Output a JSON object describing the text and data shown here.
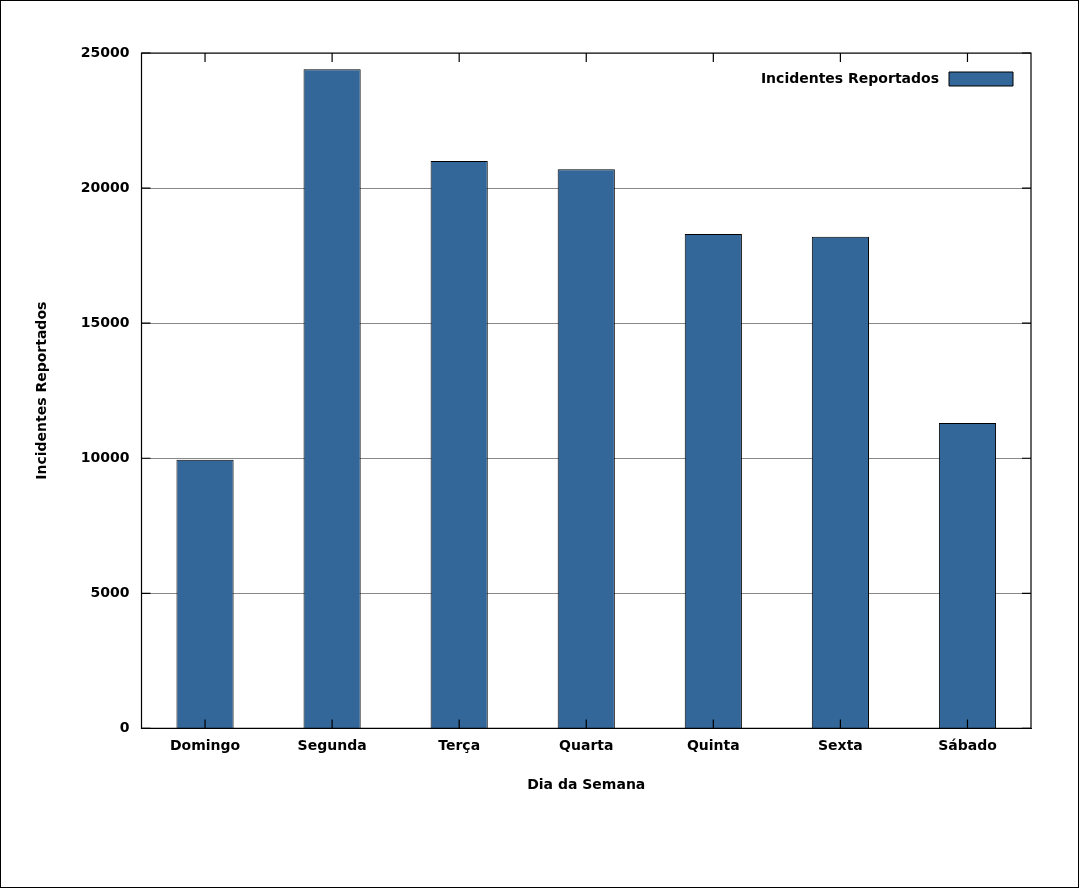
{
  "chart_data": {
    "type": "bar",
    "xlabel": "Dia da Semana",
    "ylabel": "Incidentes Reportados",
    "categories": [
      "Domingo",
      "Segunda",
      "Terça",
      "Quarta",
      "Quinta",
      "Sexta",
      "Sábado"
    ],
    "series": [
      {
        "name": "Incidentes Reportados",
        "color": "#336699",
        "values": [
          9940,
          24400,
          21000,
          20700,
          18300,
          18200,
          11300
        ]
      }
    ],
    "ylim": [
      0,
      25000
    ],
    "yticks": [
      0,
      5000,
      10000,
      15000,
      20000,
      25000
    ],
    "grid": "y",
    "legend": "top right"
  }
}
